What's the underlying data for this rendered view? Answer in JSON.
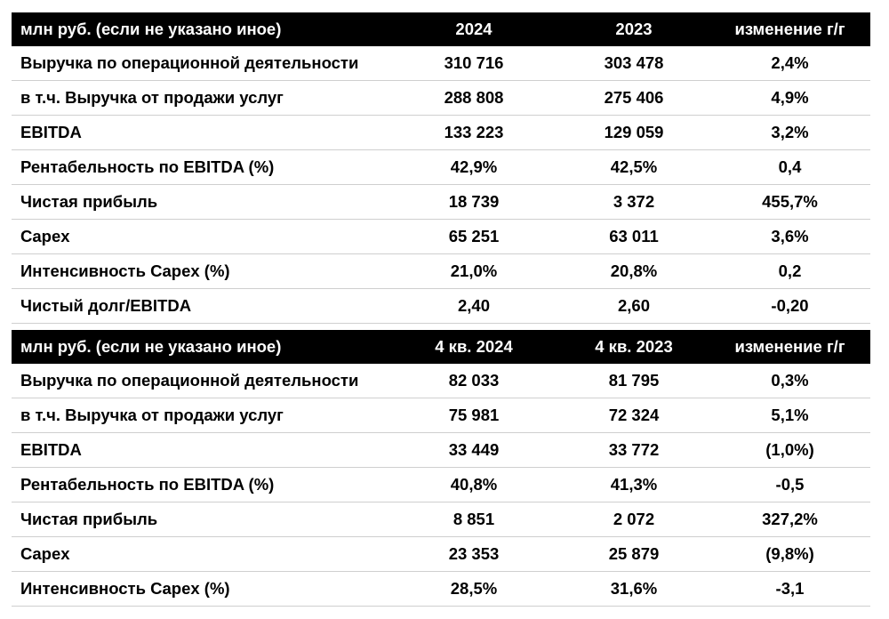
{
  "tables": [
    {
      "header": [
        "млн руб. (если не указано иное)",
        "2024",
        "2023",
        "изменение г/г"
      ],
      "rows": [
        [
          "Выручка по операционной деятельности",
          "310 716",
          "303 478",
          "2,4%"
        ],
        [
          "в т.ч. Выручка от продажи услуг",
          "288 808",
          "275 406",
          "4,9%"
        ],
        [
          "EBITDA",
          "133 223",
          "129 059",
          "3,2%"
        ],
        [
          "Рентабельность по EBITDA (%)",
          "42,9%",
          "42,5%",
          "0,4"
        ],
        [
          "Чистая прибыль",
          "18 739",
          "3 372",
          "455,7%"
        ],
        [
          "Capex",
          "65 251",
          "63 011",
          "3,6%"
        ],
        [
          "Интенсивность Capex (%)",
          "21,0%",
          "20,8%",
          "0,2"
        ],
        [
          "Чистый долг/EBITDA",
          "2,40",
          "2,60",
          "-0,20"
        ]
      ]
    },
    {
      "header": [
        "млн руб. (если не указано иное)",
        "4 кв. 2024",
        "4 кв. 2023",
        "изменение г/г"
      ],
      "rows": [
        [
          "Выручка по операционной деятельности",
          "82 033",
          "81 795",
          "0,3%"
        ],
        [
          "в т.ч. Выручка от продажи услуг",
          "75 981",
          "72 324",
          "5,1%"
        ],
        [
          "EBITDA",
          "33 449",
          "33 772",
          "(1,0%)"
        ],
        [
          "Рентабельность по EBITDA (%)",
          "40,8%",
          "41,3%",
          "-0,5"
        ],
        [
          "Чистая прибыль",
          "8 851",
          "2 072",
          "327,2%"
        ],
        [
          "Capex",
          "23 353",
          "25 879",
          "(9,8%)"
        ],
        [
          "Интенсивность Capex (%)",
          "28,5%",
          "31,6%",
          "-3,1"
        ]
      ]
    }
  ],
  "colors": {
    "header_bg": "#000000",
    "header_text": "#ffffff",
    "row_border": "#cfcfcf"
  }
}
